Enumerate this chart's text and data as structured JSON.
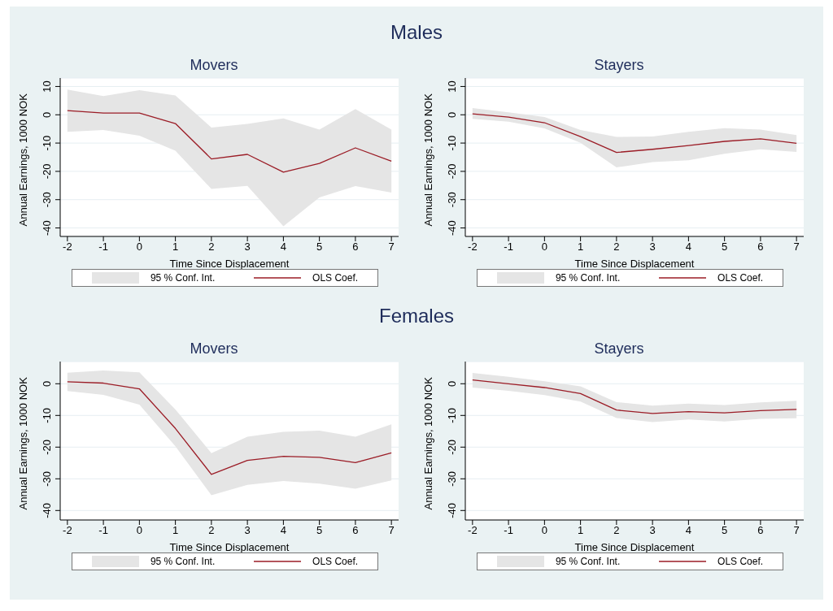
{
  "chart_data": [
    {
      "type": "line",
      "title": "Males",
      "subtitle": "Movers",
      "xlabel": "Time Since Displacement",
      "ylabel": "Annual Earnings, 1000 NOK",
      "annotations": [
        "95 % Conf. Int."
      ],
      "x": [
        -2,
        -1,
        0,
        1,
        2,
        3,
        4,
        5,
        6,
        7
      ],
      "xlim": [
        -2.2,
        7.2
      ],
      "xticks": [
        -2,
        -1,
        0,
        1,
        2,
        3,
        4,
        5,
        6,
        7
      ],
      "ylim": [
        -43,
        13
      ],
      "yticks": [
        10,
        0,
        -10,
        -20,
        -30,
        -40
      ],
      "grid": "y",
      "legend": "bottom",
      "series": [
        {
          "name": "OLS Coef.",
          "color": "#9b1c26",
          "values": [
            1.5,
            0.6,
            0.6,
            -3.1,
            -15.6,
            -14,
            -20.3,
            -17.2,
            -11.7,
            -16.4
          ],
          "lower": [
            -6,
            -5.4,
            -7.4,
            -12.7,
            -26.2,
            -25.1,
            -39.4,
            -29.2,
            -25.2,
            -27.5
          ],
          "upper": [
            8.9,
            6.6,
            8.7,
            6.8,
            -4.5,
            -3.2,
            -1.3,
            -5.2,
            2,
            -5.2
          ]
        }
      ]
    },
    {
      "type": "line",
      "subtitle": "Stayers",
      "xlabel": "Time Since Displacement",
      "ylabel": "Annual Earnings, 1000 NOK",
      "annotations": [
        "95 % Conf. Int."
      ],
      "x": [
        -2,
        -1,
        0,
        1,
        2,
        3,
        4,
        5,
        6,
        7
      ],
      "xlim": [
        -2.2,
        7.2
      ],
      "xticks": [
        -2,
        -1,
        0,
        1,
        2,
        3,
        4,
        5,
        6,
        7
      ],
      "ylim": [
        -43,
        13
      ],
      "yticks": [
        10,
        0,
        -10,
        -20,
        -30,
        -40
      ],
      "grid": "y",
      "legend": "bottom",
      "series": [
        {
          "name": "OLS Coef.",
          "color": "#9b1c26",
          "values": [
            0.3,
            -0.8,
            -2.8,
            -7.7,
            -13.3,
            -12.2,
            -10.9,
            -9.4,
            -8.5,
            -10.1
          ],
          "lower": [
            -1.4,
            -2.4,
            -4.8,
            -9.9,
            -18.6,
            -16.7,
            -16.1,
            -13.8,
            -12.2,
            -13.1
          ],
          "upper": [
            2.4,
            0.9,
            -0.8,
            -5.4,
            -7.8,
            -7.7,
            -6,
            -4.7,
            -5.2,
            -7.2
          ]
        }
      ]
    },
    {
      "type": "line",
      "title": "Females",
      "subtitle": "Movers",
      "xlabel": "Time Since Displacement",
      "ylabel": "Annual Earnings, 1000 NOK",
      "annotations": [
        "95 % Conf. Int."
      ],
      "x": [
        -2,
        -1,
        0,
        1,
        2,
        3,
        4,
        5,
        6,
        7
      ],
      "xlim": [
        -2.2,
        7.2
      ],
      "xticks": [
        -2,
        -1,
        0,
        1,
        2,
        3,
        4,
        5,
        6,
        7
      ],
      "ylim": [
        -43,
        7
      ],
      "yticks": [
        0,
        -10,
        -20,
        -30,
        -40
      ],
      "grid": "y",
      "legend": "bottom",
      "series": [
        {
          "name": "OLS Coef.",
          "color": "#9b1c26",
          "values": [
            0.6,
            0.2,
            -1.6,
            -14.1,
            -28.6,
            -24.2,
            -22.9,
            -23.2,
            -24.9,
            -21.8
          ],
          "lower": [
            -2.3,
            -3.5,
            -6.6,
            -19.7,
            -35.2,
            -31.9,
            -30.7,
            -31.5,
            -33.1,
            -30.5
          ],
          "upper": [
            3.5,
            4.2,
            3.6,
            -8.1,
            -21.9,
            -16.7,
            -15.2,
            -14.8,
            -16.7,
            -12.8
          ]
        }
      ]
    },
    {
      "type": "line",
      "subtitle": "Stayers",
      "xlabel": "Time Since Displacement",
      "ylabel": "Annual Earnings, 1000 NOK",
      "annotations": [
        "95 % Conf. Int."
      ],
      "x": [
        -2,
        -1,
        0,
        1,
        2,
        3,
        4,
        5,
        6,
        7
      ],
      "xlim": [
        -2.2,
        7.2
      ],
      "xticks": [
        -2,
        -1,
        0,
        1,
        2,
        3,
        4,
        5,
        6,
        7
      ],
      "ylim": [
        -43,
        7
      ],
      "yticks": [
        0,
        -10,
        -20,
        -30,
        -40
      ],
      "grid": "y",
      "legend": "bottom",
      "series": [
        {
          "name": "OLS Coef.",
          "color": "#9b1c26",
          "values": [
            1.2,
            0,
            -1.2,
            -3.1,
            -8.3,
            -9.4,
            -8.8,
            -9.2,
            -8.5,
            -8.1
          ],
          "lower": [
            -1.2,
            -2.2,
            -3.6,
            -5.6,
            -10.8,
            -12.1,
            -11.3,
            -11.9,
            -11.1,
            -10.9
          ],
          "upper": [
            3.4,
            2.2,
            0.8,
            -0.8,
            -5.8,
            -6.9,
            -6.3,
            -6.7,
            -5.9,
            -5.4
          ]
        }
      ]
    }
  ]
}
